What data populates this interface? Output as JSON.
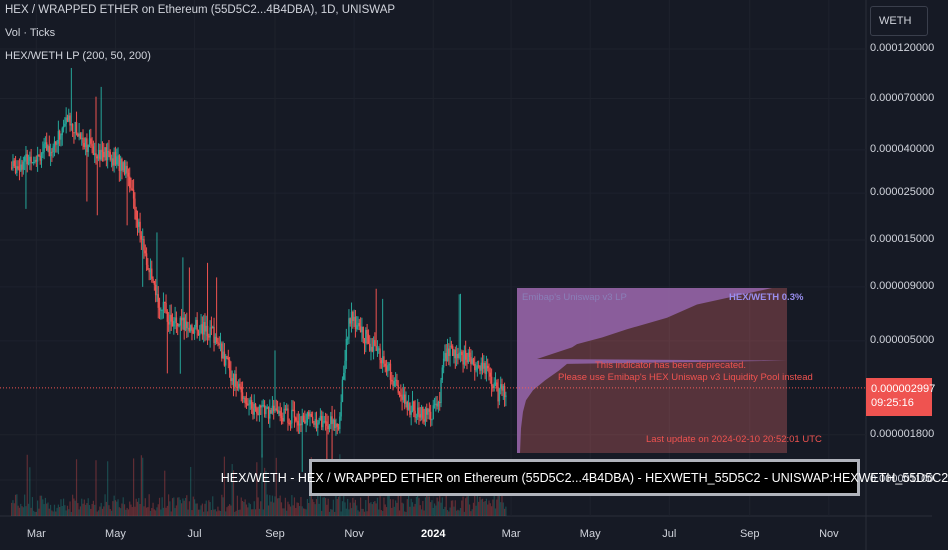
{
  "legend": {
    "title": "HEX / WRAPPED ETHER on Ethereum (55D5C2...4B4DBA), 1D, UNISWAP",
    "volume": "Vol · Ticks",
    "lp": "HEX/WETH LP (200, 50, 200)"
  },
  "currency": "WETH",
  "price_tag": {
    "price": "0.000002997",
    "countdown": "09:25:16"
  },
  "lp_panel": {
    "name": "Emibap's Uniswap v3 LP",
    "pair": "HEX/WETH 0.3%",
    "warning_line1": "This indicator has been deprecated.",
    "warning_line2": "Please use Emibap's HEX Uniswap v3 Liquidity Pool instead",
    "update": "Last update on 2024-02-10 20:52:01 UTC"
  },
  "symbol_banner": "HEX/WETH - HEX / WRAPPED ETHER on Ethereum (55D5C2...4B4DBA) - HEXWETH_55D5C2 - UNISWAP:HEXWETH_55D5C2",
  "colors": {
    "up": "#26a69a",
    "down": "#ef5350",
    "lp_fill": "#6a5fc1",
    "background": "#161a25"
  },
  "chart_data": {
    "type": "candlestick",
    "y_scale": "log",
    "y_ticks": [
      "0.000120000",
      "0.000070000",
      "0.000040000",
      "0.000025000",
      "0.000015000",
      "0.000009000",
      "0.000005000",
      "0.000002997",
      "0.000001800",
      "0.000001100"
    ],
    "y_tick_values": [
      0.00012,
      7e-05,
      4e-05,
      2.5e-05,
      1.5e-05,
      9e-06,
      5e-06,
      1.8e-06,
      1.1e-06
    ],
    "x_ticks": [
      {
        "label": "Mar",
        "date": "2023-03-01"
      },
      {
        "label": "May",
        "date": "2023-05-01"
      },
      {
        "label": "Jul",
        "date": "2023-07-01"
      },
      {
        "label": "Sep",
        "date": "2023-09-01"
      },
      {
        "label": "Nov",
        "date": "2023-11-01"
      },
      {
        "label": "2024",
        "date": "2024-01-01",
        "bold": true
      },
      {
        "label": "Mar",
        "date": "2024-03-01"
      },
      {
        "label": "May",
        "date": "2024-05-01"
      },
      {
        "label": "Jul",
        "date": "2024-07-01"
      },
      {
        "label": "Sep",
        "date": "2024-09-01"
      },
      {
        "label": "Nov",
        "date": "2024-11-01"
      }
    ],
    "last_price": 2.997e-06,
    "price_path": [
      {
        "date": "2023-02-10",
        "price": 3.3e-05
      },
      {
        "date": "2023-03-15",
        "price": 4.2e-05
      },
      {
        "date": "2023-03-25",
        "price": 5.6e-05
      },
      {
        "date": "2023-04-10",
        "price": 4.2e-05
      },
      {
        "date": "2023-04-30",
        "price": 3.6e-05
      },
      {
        "date": "2023-05-10",
        "price": 3.3e-05
      },
      {
        "date": "2023-05-20",
        "price": 1.6e-05
      },
      {
        "date": "2023-06-01",
        "price": 8e-06
      },
      {
        "date": "2023-06-15",
        "price": 6e-06
      },
      {
        "date": "2023-07-01",
        "price": 5.8e-06
      },
      {
        "date": "2023-07-15",
        "price": 5.5e-06
      },
      {
        "date": "2023-08-01",
        "price": 3.2e-06
      },
      {
        "date": "2023-08-15",
        "price": 2.4e-06
      },
      {
        "date": "2023-09-01",
        "price": 2.3e-06
      },
      {
        "date": "2023-10-01",
        "price": 2.1e-06
      },
      {
        "date": "2023-10-20",
        "price": 2e-06
      },
      {
        "date": "2023-10-28",
        "price": 6.5e-06
      },
      {
        "date": "2023-11-10",
        "price": 5.2e-06
      },
      {
        "date": "2023-11-25",
        "price": 3.9e-06
      },
      {
        "date": "2023-12-10",
        "price": 2.5e-06
      },
      {
        "date": "2023-12-25",
        "price": 2.2e-06
      },
      {
        "date": "2024-01-05",
        "price": 2.4e-06
      },
      {
        "date": "2024-01-10",
        "price": 4.4e-06
      },
      {
        "date": "2024-01-25",
        "price": 4.2e-06
      },
      {
        "date": "2024-02-10",
        "price": 3.7e-06
      },
      {
        "date": "2024-02-20",
        "price": 2.8e-06
      },
      {
        "date": "2024-02-26",
        "price": 2.997e-06
      }
    ]
  }
}
